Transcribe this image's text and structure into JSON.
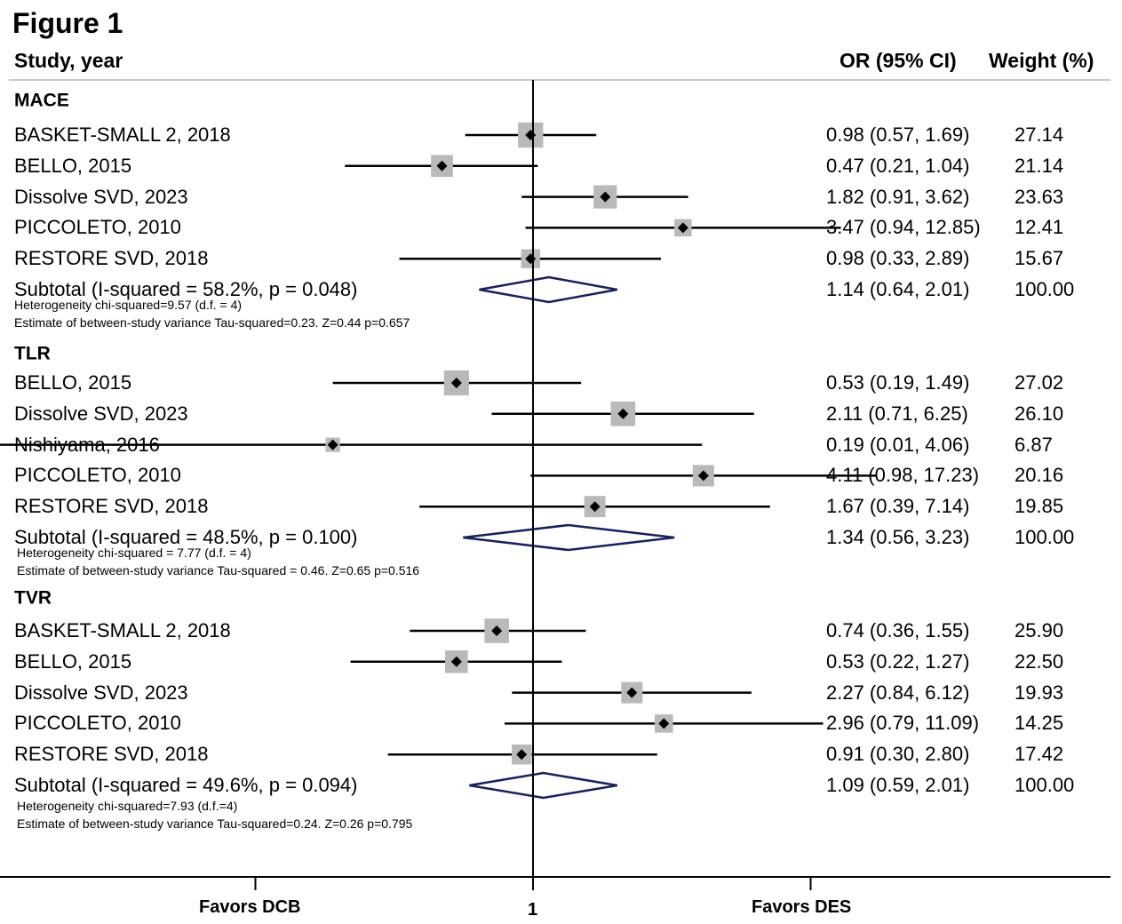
{
  "figure_title": "Figure 1",
  "headers": {
    "study": "Study, year",
    "or": "OR (95% CI)",
    "weight": "Weight (%)"
  },
  "chart_data": {
    "type": "forest",
    "scale": "log",
    "x_ticks": [
      0.1,
      1,
      10
    ],
    "reference_line": 1,
    "axis_labels": {
      "left": "Favors DCB",
      "center": "1",
      "right": "Favors DES"
    },
    "colors": {
      "box": "#b9b9b9",
      "point": "#000000",
      "diamond": "#1a1f5e",
      "line": "#000000"
    },
    "groups": [
      {
        "name": "MACE",
        "studies": [
          {
            "study": "BASKET-SMALL 2, 2018",
            "or": 0.98,
            "lo": 0.57,
            "hi": 1.69,
            "or_text": "0.98 (0.57, 1.69)",
            "weight": "27.14",
            "w": 27.14
          },
          {
            "study": "BELLO, 2015",
            "or": 0.47,
            "lo": 0.21,
            "hi": 1.04,
            "or_text": "0.47 (0.21, 1.04)",
            "weight": "21.14",
            "w": 21.14
          },
          {
            "study": "Dissolve SVD, 2023",
            "or": 1.82,
            "lo": 0.91,
            "hi": 3.62,
            "or_text": "1.82 (0.91, 3.62)",
            "weight": "23.63",
            "w": 23.63
          },
          {
            "study": "PICCOLETO, 2010",
            "or": 3.47,
            "lo": 0.94,
            "hi": 12.85,
            "or_text": "3.47 (0.94, 12.85)",
            "weight": "12.41",
            "w": 12.41
          },
          {
            "study": "RESTORE SVD, 2018",
            "or": 0.98,
            "lo": 0.33,
            "hi": 2.89,
            "or_text": "0.98 (0.33, 2.89)",
            "weight": "15.67",
            "w": 15.67
          }
        ],
        "subtotal": {
          "label": "Subtotal  (I-squared = 58.2%, p = 0.048)",
          "or": 1.14,
          "lo": 0.64,
          "hi": 2.01,
          "or_text": "1.14 (0.64, 2.01)",
          "weight": "100.00"
        },
        "notes": [
          "Heterogeneity chi-squared=9.57 (d.f. = 4)",
          "Estimate of between-study variance Tau-squared=0.23. Z=0.44 p=0.657"
        ]
      },
      {
        "name": "TLR",
        "studies": [
          {
            "study": "BELLO, 2015",
            "or": 0.53,
            "lo": 0.19,
            "hi": 1.49,
            "or_text": "0.53 (0.19, 1.49)",
            "weight": "27.02",
            "w": 27.02
          },
          {
            "study": "Dissolve SVD, 2023",
            "or": 2.11,
            "lo": 0.71,
            "hi": 6.25,
            "or_text": "2.11 (0.71, 6.25)",
            "weight": "26.10",
            "w": 26.1
          },
          {
            "study": "Nishiyama, 2016",
            "or": 0.19,
            "lo": 0.01,
            "hi": 4.06,
            "or_text": "0.19 (0.01, 4.06)",
            "weight": "6.87",
            "w": 6.87
          },
          {
            "study": "PICCOLETO, 2010",
            "or": 4.11,
            "lo": 0.98,
            "hi": 17.23,
            "or_text": "4.11 (0.98, 17.23)",
            "weight": "20.16",
            "w": 20.16
          },
          {
            "study": "RESTORE SVD, 2018",
            "or": 1.67,
            "lo": 0.39,
            "hi": 7.14,
            "or_text": "1.67 (0.39, 7.14)",
            "weight": "19.85",
            "w": 19.85
          }
        ],
        "subtotal": {
          "label": "Subtotal  (I-squared = 48.5%, p = 0.100)",
          "or": 1.34,
          "lo": 0.56,
          "hi": 3.23,
          "or_text": "1.34 (0.56, 3.23)",
          "weight": "100.00"
        },
        "notes": [
          "Heterogeneity chi-squared = 7.77 (d.f. = 4)",
          "Estimate of between-study variance Tau-squared = 0.46. Z=0.65 p=0.516"
        ]
      },
      {
        "name": "TVR",
        "studies": [
          {
            "study": "BASKET-SMALL 2, 2018",
            "or": 0.74,
            "lo": 0.36,
            "hi": 1.55,
            "or_text": "0.74 (0.36, 1.55)",
            "weight": "25.90",
            "w": 25.9
          },
          {
            "study": "BELLO, 2015",
            "or": 0.53,
            "lo": 0.22,
            "hi": 1.27,
            "or_text": "0.53 (0.22, 1.27)",
            "weight": "22.50",
            "w": 22.5
          },
          {
            "study": "Dissolve SVD, 2023",
            "or": 2.27,
            "lo": 0.84,
            "hi": 6.12,
            "or_text": "2.27 (0.84, 6.12)",
            "weight": "19.93",
            "w": 19.93
          },
          {
            "study": "PICCOLETO, 2010",
            "or": 2.96,
            "lo": 0.79,
            "hi": 11.09,
            "or_text": "2.96 (0.79, 11.09)",
            "weight": "14.25",
            "w": 14.25
          },
          {
            "study": "RESTORE SVD, 2018",
            "or": 0.91,
            "lo": 0.3,
            "hi": 2.8,
            "or_text": "0.91 (0.30, 2.80)",
            "weight": "17.42",
            "w": 17.42
          }
        ],
        "subtotal": {
          "label": "Subtotal  (I-squared = 49.6%, p = 0.094)",
          "or": 1.09,
          "lo": 0.59,
          "hi": 2.01,
          "or_text": "1.09 (0.59, 2.01)",
          "weight": "100.00"
        },
        "notes": [
          "Heterogeneity chi-squared=7.93 (d.f.=4)",
          "Estimate of between-study variance Tau-squared=0.24. Z=0.26 p=0.795"
        ]
      }
    ]
  }
}
